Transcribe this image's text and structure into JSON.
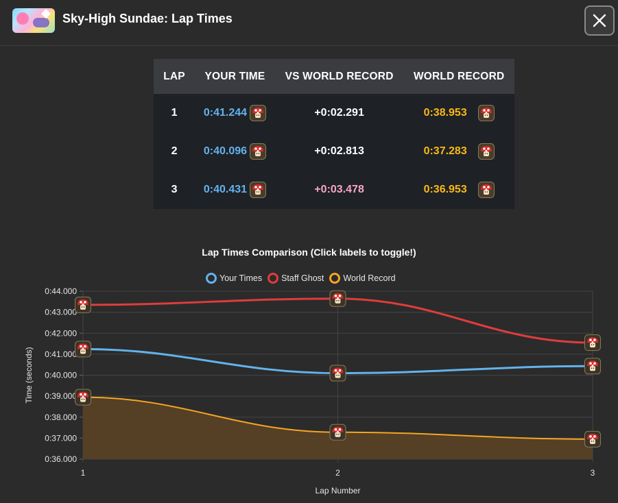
{
  "header": {
    "title": "Sky-High Sundae: Lap Times",
    "thumbnail_icon": "track-thumbnail",
    "close_icon": "close-icon"
  },
  "table": {
    "headers": [
      "LAP",
      "YOUR TIME",
      "VS WORLD RECORD",
      "WORLD RECORD"
    ],
    "rows": [
      {
        "lap": "1",
        "your_time": "0:41.244",
        "vs_wr": "+0:02.291",
        "world_record": "0:38.953"
      },
      {
        "lap": "2",
        "your_time": "0:40.096",
        "vs_wr": "+0:02.813",
        "world_record": "0:37.283"
      },
      {
        "lap": "3",
        "your_time": "0:40.431",
        "vs_wr": "+0:03.478",
        "world_record": "0:36.953"
      }
    ],
    "item_icon": "mushroom-icon"
  },
  "colors": {
    "your_time": "#63b3ed",
    "staff_ghost": "#e03c3c",
    "world_record": "#f5a623",
    "wr_text": "#f9b917",
    "delta_worse": "#f6a6c4"
  },
  "chart_data": {
    "type": "line",
    "title": "Lap Times Comparison (Click labels to toggle!)",
    "xlabel": "Lap Number",
    "ylabel": "Time (seconds)",
    "x": [
      1,
      2,
      3
    ],
    "ylim": [
      36,
      44
    ],
    "yticks": [
      "0:36.000",
      "0:37.000",
      "0:38.000",
      "0:39.000",
      "0:40.000",
      "0:41.000",
      "0:42.000",
      "0:43.000",
      "0:44.000"
    ],
    "xticks": [
      "1",
      "2",
      "3"
    ],
    "grid": true,
    "legend_position": "top-center",
    "series": [
      {
        "name": "Your Times",
        "values": [
          41.244,
          40.096,
          40.431
        ],
        "color": "#63b3ed",
        "fill": false
      },
      {
        "name": "Staff Ghost",
        "values": [
          43.35,
          43.65,
          41.55
        ],
        "color": "#e03c3c",
        "fill": false
      },
      {
        "name": "World Record",
        "values": [
          38.953,
          37.283,
          36.953
        ],
        "color": "#f5a623",
        "fill": true
      }
    ]
  }
}
